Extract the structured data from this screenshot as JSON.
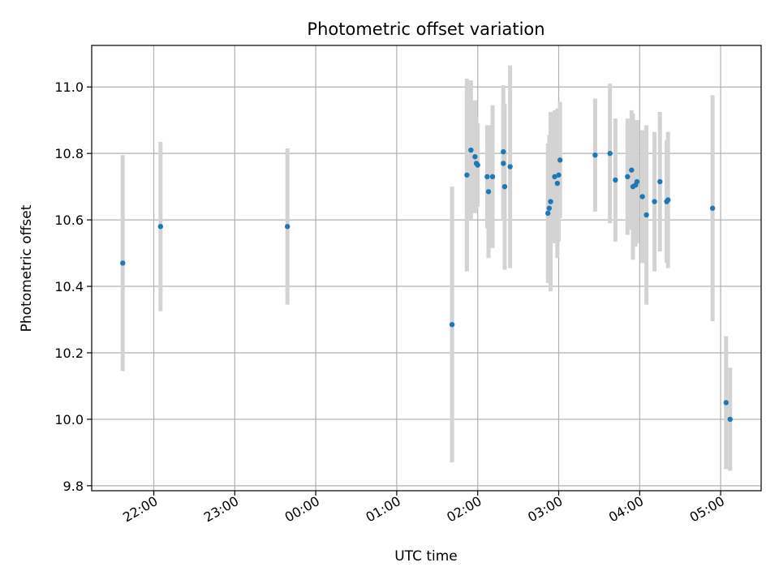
{
  "chart_data": {
    "type": "scatter",
    "title": "Photometric offset variation",
    "xlabel": "UTC time",
    "ylabel": "Photometric offset",
    "x_unit": "UTC time (HH:MM)",
    "xlim": [
      "21:14",
      "05:30"
    ],
    "ylim": [
      9.785,
      11.125
    ],
    "grid": true,
    "x_ticks": [
      "22:00",
      "23:00",
      "00:00",
      "01:00",
      "02:00",
      "03:00",
      "04:00",
      "05:00"
    ],
    "y_ticks": [
      "9.8",
      "10.0",
      "10.2",
      "10.4",
      "10.6",
      "10.8",
      "11.0"
    ],
    "colors": {
      "point": "#1f77b4",
      "errorbar": "#d3d3d3",
      "grid": "#b0b0b0"
    },
    "points": [
      {
        "x": "21:37",
        "y": 10.47,
        "err": 0.325
      },
      {
        "x": "22:05",
        "y": 10.58,
        "err": 0.255
      },
      {
        "x": "23:39",
        "y": 10.58,
        "err": 0.235
      },
      {
        "x": "01:41",
        "y": 10.285,
        "err": 0.415
      },
      {
        "x": "01:52",
        "y": 10.735,
        "err": 0.29
      },
      {
        "x": "01:55",
        "y": 10.81,
        "err": 0.21
      },
      {
        "x": "01:58",
        "y": 10.79,
        "err": 0.17
      },
      {
        "x": "01:59",
        "y": 10.77,
        "err": 0.14
      },
      {
        "x": "02:00",
        "y": 10.765,
        "err": 0.125
      },
      {
        "x": "02:07",
        "y": 10.73,
        "err": 0.155
      },
      {
        "x": "02:08",
        "y": 10.685,
        "err": 0.2
      },
      {
        "x": "02:11",
        "y": 10.73,
        "err": 0.215
      },
      {
        "x": "02:19",
        "y": 10.805,
        "err": 0.2
      },
      {
        "x": "02:19",
        "y": 10.77,
        "err": 0.17
      },
      {
        "x": "02:20",
        "y": 10.7,
        "err": 0.25
      },
      {
        "x": "02:24",
        "y": 10.76,
        "err": 0.305
      },
      {
        "x": "02:52",
        "y": 10.62,
        "err": 0.21
      },
      {
        "x": "02:53",
        "y": 10.635,
        "err": 0.22
      },
      {
        "x": "02:54",
        "y": 10.655,
        "err": 0.27
      },
      {
        "x": "02:57",
        "y": 10.73,
        "err": 0.2
      },
      {
        "x": "02:59",
        "y": 10.71,
        "err": 0.225
      },
      {
        "x": "03:00",
        "y": 10.735,
        "err": 0.2
      },
      {
        "x": "03:01",
        "y": 10.78,
        "err": 0.175
      },
      {
        "x": "03:27",
        "y": 10.795,
        "err": 0.17
      },
      {
        "x": "03:38",
        "y": 10.8,
        "err": 0.21
      },
      {
        "x": "03:42",
        "y": 10.72,
        "err": 0.185
      },
      {
        "x": "03:51",
        "y": 10.73,
        "err": 0.175
      },
      {
        "x": "03:54",
        "y": 10.75,
        "err": 0.18
      },
      {
        "x": "03:55",
        "y": 10.7,
        "err": 0.22
      },
      {
        "x": "03:57",
        "y": 10.705,
        "err": 0.185
      },
      {
        "x": "03:58",
        "y": 10.715,
        "err": 0.185
      },
      {
        "x": "04:02",
        "y": 10.67,
        "err": 0.2
      },
      {
        "x": "04:05",
        "y": 10.615,
        "err": 0.27
      },
      {
        "x": "04:11",
        "y": 10.655,
        "err": 0.21
      },
      {
        "x": "04:15",
        "y": 10.715,
        "err": 0.21
      },
      {
        "x": "04:20",
        "y": 10.655,
        "err": 0.185
      },
      {
        "x": "04:21",
        "y": 10.66,
        "err": 0.205
      },
      {
        "x": "04:54",
        "y": 10.635,
        "err": 0.34
      },
      {
        "x": "05:04",
        "y": 10.05,
        "err": 0.2
      },
      {
        "x": "05:07",
        "y": 10.0,
        "err": 0.155
      }
    ]
  }
}
